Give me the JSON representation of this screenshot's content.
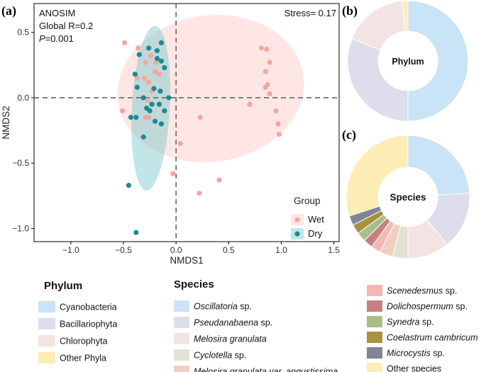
{
  "chart_data": [
    {
      "panel": "(a)",
      "type": "scatter",
      "xlabel": "NMDS1",
      "ylabel": "NMDS2",
      "xlim": [
        -1.35,
        1.55
      ],
      "ylim": [
        -1.1,
        0.72
      ],
      "xticks": [
        -1.0,
        -0.5,
        0.0,
        0.5,
        1.0,
        1.5
      ],
      "yticks": [
        0.5,
        0.0,
        -0.5,
        -1.0
      ],
      "xtick_labels": [
        "−1.0",
        "−0.5",
        "0.0",
        "0.5",
        "1.0",
        "1.5"
      ],
      "ytick_labels": [
        "0.5",
        "0.0",
        "−0.5",
        "−1.0"
      ],
      "annotations": {
        "test": "ANOSIM",
        "r_text": "Global R=0.2",
        "p_label": "P",
        "p_value": "=0.001",
        "stress": "Stress= 0.17"
      },
      "legend": {
        "title": "Group",
        "items": [
          "Wet",
          "Dry"
        ]
      },
      "series": [
        {
          "name": "Wet",
          "color": "#F4A6A0",
          "ellipse": {
            "cx": 0.33,
            "cy": 0.07,
            "rx": 0.89,
            "ry": 0.56,
            "angle_deg": 8
          },
          "points": [
            [
              -0.49,
              0.42
            ],
            [
              -0.36,
              0.38
            ],
            [
              -0.24,
              0.32
            ],
            [
              -0.19,
              0.27
            ],
            [
              -0.29,
              0.27
            ],
            [
              -0.2,
              0.2
            ],
            [
              -0.37,
              0.15
            ],
            [
              -0.3,
              0.15
            ],
            [
              -0.16,
              0.18
            ],
            [
              -0.26,
              0.12
            ],
            [
              -0.23,
              0.05
            ],
            [
              -0.27,
              -0.02
            ],
            [
              -0.51,
              -0.1
            ],
            [
              -0.29,
              -0.15
            ],
            [
              -0.26,
              -0.15
            ],
            [
              0.23,
              -0.15
            ],
            [
              0.04,
              -0.35
            ],
            [
              -0.03,
              -0.58
            ],
            [
              0.22,
              -0.73
            ],
            [
              0.41,
              -0.63
            ],
            [
              0.81,
              0.38
            ],
            [
              0.86,
              0.37
            ],
            [
              0.89,
              0.27
            ],
            [
              0.85,
              0.2
            ],
            [
              0.87,
              0.1
            ],
            [
              0.89,
              0.03
            ],
            [
              0.7,
              -0.05
            ],
            [
              0.95,
              -0.1
            ],
            [
              0.97,
              -0.2
            ],
            [
              0.98,
              -0.28
            ],
            [
              0.85,
              0.08
            ]
          ]
        },
        {
          "name": "Dry",
          "color": "#1B8A94",
          "ellipse": {
            "cx": -0.24,
            "cy": -0.08,
            "rx": 0.18,
            "ry": 0.63,
            "angle_deg": -3
          },
          "points": [
            [
              -0.26,
              0.38
            ],
            [
              -0.18,
              0.36
            ],
            [
              -0.14,
              0.42
            ],
            [
              -0.18,
              0.3
            ],
            [
              -0.14,
              0.28
            ],
            [
              -0.35,
              0.33
            ],
            [
              -0.39,
              0.18
            ],
            [
              -0.11,
              0.23
            ],
            [
              -0.37,
              0.08
            ],
            [
              -0.31,
              0.0
            ],
            [
              -0.21,
              0.07
            ],
            [
              -0.15,
              0.05
            ],
            [
              -0.16,
              -0.05
            ],
            [
              -0.23,
              -0.05
            ],
            [
              -0.28,
              -0.08
            ],
            [
              -0.07,
              0.0
            ],
            [
              -0.25,
              -0.1
            ],
            [
              -0.11,
              -0.1
            ],
            [
              -0.38,
              -0.15
            ],
            [
              -0.43,
              -0.15
            ],
            [
              -0.2,
              -0.18
            ],
            [
              -0.14,
              -0.2
            ],
            [
              -0.31,
              -0.3
            ],
            [
              -0.45,
              -0.67
            ],
            [
              -0.38,
              -1.03
            ]
          ]
        }
      ]
    },
    {
      "panel": "(b)",
      "type": "pie",
      "style": "donut",
      "center_label": "Phylum",
      "legend_title": "Phylum",
      "categories": [
        "Cyanobacteria",
        "Bacillariophyta",
        "Chlorophyta",
        "Other Phyla"
      ],
      "values": [
        50,
        31,
        17.5,
        1.5
      ],
      "colors": [
        "#C9E3F7",
        "#DDDDEB",
        "#F3E3E3",
        "#FCECB6"
      ]
    },
    {
      "panel": "(c)",
      "type": "pie",
      "style": "donut",
      "center_label": "Species",
      "legend_title": "Species",
      "categories": [
        "Oscillatoria sp.",
        "Pseudanabaena sp.",
        "Melosira granulata",
        "Cyclotella sp.",
        "Melosira granulata var. angustissima",
        "Scenedesmus sp.",
        "Dolichospermum sp.",
        "Synedra sp.",
        "Coelastrum cambricum",
        "Microcystis sp.",
        "Other species"
      ],
      "values": [
        24,
        15,
        11,
        4,
        3.5,
        2.5,
        2.5,
        2.5,
        2.5,
        2.5,
        30
      ],
      "colors": [
        "#C9E3F7",
        "#DDDDEB",
        "#F3E3E3",
        "#E2E1D6",
        "#F1CFBE",
        "#F5B6B6",
        "#C78080",
        "#A9BD87",
        "#A8923E",
        "#7F8496",
        "#FCECB6"
      ]
    }
  ],
  "panel_labels": {
    "a": "(a)",
    "b": "(b)",
    "c": "(c)"
  },
  "legends": {
    "phylum_title": "Phylum",
    "species_title": "Species",
    "species_text": [
      {
        "label": "Oscillatoria",
        "suffix": " sp."
      },
      {
        "label": "Pseudanabaena",
        "suffix": " sp."
      },
      {
        "label": "Melosira granulata",
        "suffix": ""
      },
      {
        "label": "Cyclotella",
        "suffix": " sp."
      },
      {
        "label": "Melosira granulata var. angustissima",
        "suffix": ""
      },
      {
        "label": "Scenedesmus",
        "suffix": " sp."
      },
      {
        "label": "Dolichospermum",
        "suffix": " sp."
      },
      {
        "label": "Synedra",
        "suffix": " sp."
      },
      {
        "label": "Coelastrum cambricum",
        "suffix": ""
      },
      {
        "label": "Microcystis",
        "suffix": " sp."
      },
      {
        "label": "Other species",
        "suffix": ""
      }
    ]
  }
}
